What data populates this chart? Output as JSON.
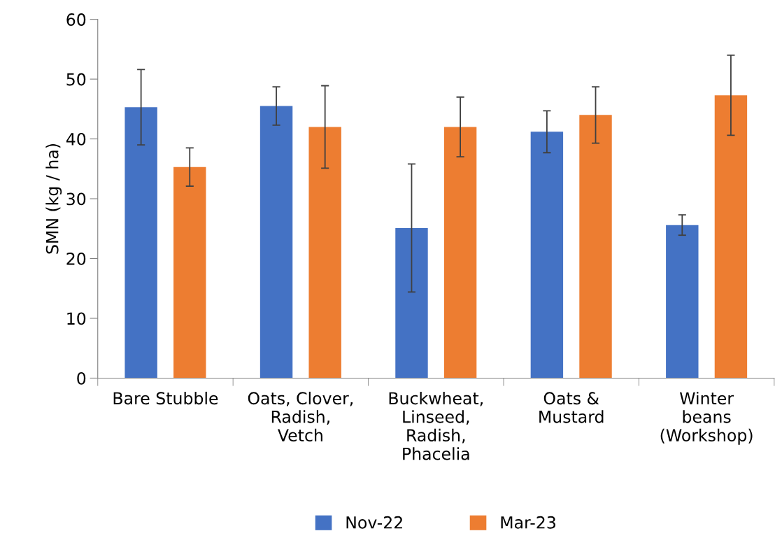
{
  "chart_data": {
    "type": "bar",
    "ylabel": "SMN (kg / ha)",
    "categories": [
      "Bare Stubble",
      "Oats, Clover,\nRadish,\nVetch",
      "Buckwheat,\nLinseed,\nRadish,\nPhacelia",
      "Oats &\nMustard",
      "Winter\nbeans\n(Workshop)"
    ],
    "series": [
      {
        "name": "Nov-22",
        "color": "#4472c4",
        "values": [
          45.3,
          45.5,
          25.1,
          41.2,
          25.6
        ],
        "errors": [
          6.3,
          3.2,
          10.7,
          3.5,
          1.7
        ]
      },
      {
        "name": "Mar-23",
        "color": "#ed7d31",
        "values": [
          35.3,
          42.0,
          42.0,
          44.0,
          47.3
        ],
        "errors": [
          3.2,
          6.9,
          5.0,
          4.7,
          6.7
        ]
      }
    ],
    "ylim": [
      0,
      60
    ],
    "yticks": [
      0,
      10,
      20,
      30,
      40,
      50,
      60
    ],
    "grid": false,
    "legend": "bottom"
  }
}
